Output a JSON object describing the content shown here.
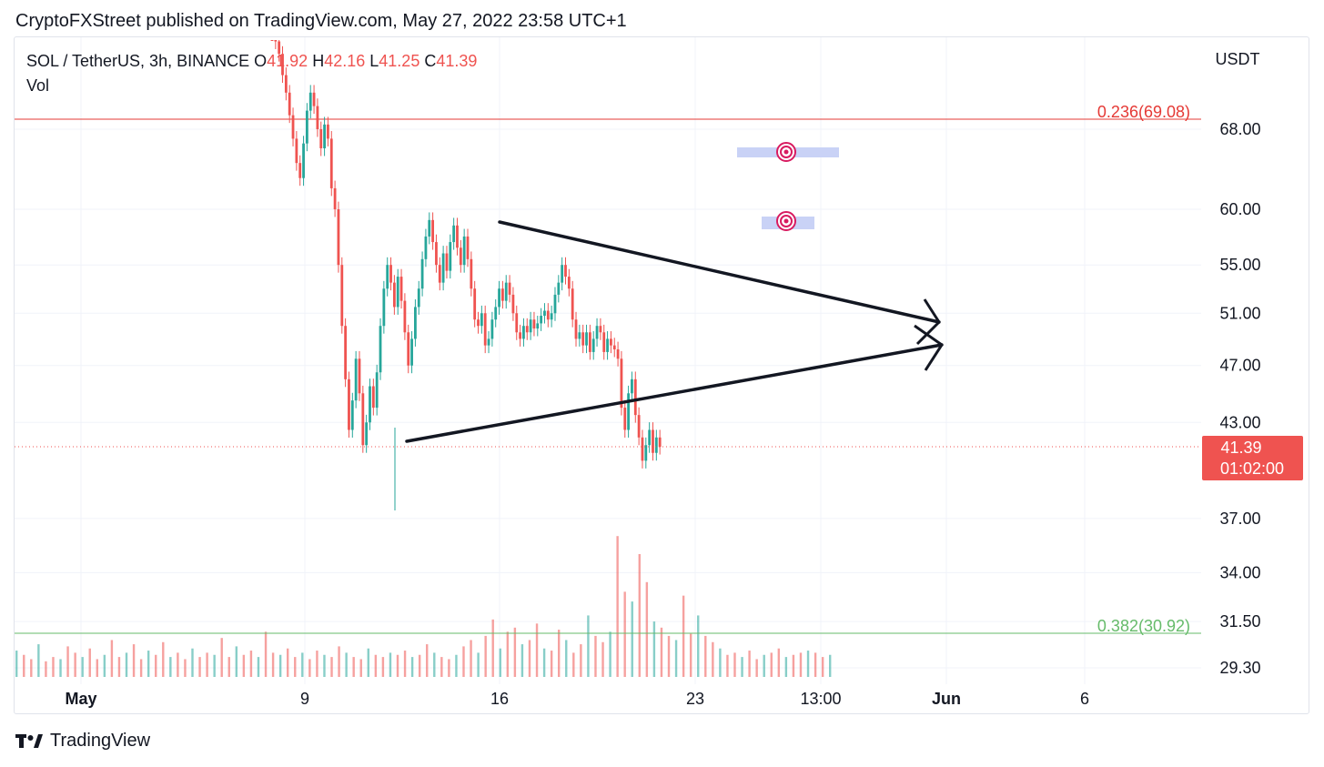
{
  "header": {
    "published": "CryptoFXStreet published on TradingView.com, May 27, 2022 23:58 UTC+1"
  },
  "legend": {
    "symbol": "SOL / TetherUS, 3h, BINANCE",
    "open_label": "O",
    "open": "41.92",
    "high_label": "H",
    "high": "42.16",
    "low_label": "L",
    "low": "41.25",
    "close_label": "C",
    "close": "41.39",
    "volume_label": "Vol"
  },
  "footer": {
    "brand": "TradingView"
  },
  "colors": {
    "up": "#26a69a",
    "down": "#ef5350",
    "fib_0236": "#e53935",
    "fib_0382": "#66bb6a",
    "price_tag": "#ef5350",
    "drawing": "#131722",
    "target_box": "#c9d2f6"
  },
  "chart_data": {
    "type": "candlestick",
    "symbol": "SOL / TetherUS",
    "interval": "3h",
    "exchange": "BINANCE",
    "currency": "USDT",
    "scale": "log",
    "ylim": [
      28.5,
      79
    ],
    "x_ticks": [
      "May",
      "9",
      "16",
      "23",
      "13:00",
      "Jun",
      "6"
    ],
    "y_ticks": [
      "68.00",
      "60.00",
      "55.00",
      "51.00",
      "47.00",
      "43.00",
      "37.00",
      "34.00",
      "31.50",
      "29.30"
    ],
    "last_price": "41.39",
    "countdown": "01:02:00",
    "fib_levels": [
      {
        "label": "0.236(69.08)",
        "level": 0.236,
        "price": 69.08
      },
      {
        "label": "0.382(30.92)",
        "level": 0.382,
        "price": 30.92
      }
    ],
    "close_series": {
      "start": "2022-05-08",
      "bar_hours": 3,
      "close": [
        79.0,
        78.0,
        76.5,
        74.0,
        72.0,
        69.5,
        67.0,
        64.5,
        63.0,
        66.5,
        70.0,
        72.0,
        70.5,
        68.0,
        66.0,
        68.5,
        67.0,
        62.0,
        60.0,
        55.0,
        50.0,
        46.0,
        42.5,
        44.5,
        47.5,
        45.0,
        41.5,
        43.0,
        45.5,
        44.0,
        46.5,
        50.0,
        53.0,
        55.0,
        53.5,
        51.5,
        54.0,
        52.0,
        49.5,
        47.0,
        49.0,
        51.5,
        53.0,
        55.5,
        57.5,
        59.0,
        57.0,
        55.0,
        53.5,
        56.0,
        54.5,
        57.0,
        58.5,
        56.5,
        55.0,
        57.5,
        55.5,
        53.0,
        50.5,
        50.0,
        51.0,
        48.5,
        49.0,
        50.5,
        51.5,
        53.0,
        52.0,
        53.5,
        52.5,
        51.0,
        49.5,
        49.0,
        50.0,
        49.5,
        50.5,
        49.8,
        50.2,
        50.8,
        51.2,
        50.5,
        51.0,
        52.5,
        53.5,
        55.0,
        54.0,
        53.0,
        50.5,
        49.0,
        49.5,
        48.5,
        49.5,
        48.0,
        49.0,
        50.0,
        49.5,
        48.0,
        49.0,
        48.5,
        48.2,
        47.5,
        44.0,
        42.5,
        45.0,
        46.0,
        43.5,
        42.0,
        40.5,
        41.5,
        42.5,
        41.0,
        42.0,
        41.39
      ]
    },
    "volume": [
      30.1,
      29.9,
      29.7,
      30.4,
      29.6,
      29.8,
      29.7,
      30.3,
      30.0,
      29.8,
      30.2,
      29.7,
      29.9,
      30.6,
      29.8,
      30.0,
      30.4,
      29.7,
      30.1,
      29.9,
      30.5,
      29.8,
      30.0,
      29.7,
      30.2,
      29.8,
      30.0,
      29.9,
      30.7,
      29.8,
      30.3,
      29.9,
      30.1,
      29.8,
      31.0,
      30.0,
      29.9,
      30.2,
      29.8,
      30.0,
      29.7,
      30.1,
      29.9,
      29.8,
      30.3,
      30.0,
      29.8,
      29.7,
      30.2,
      29.9,
      29.8,
      30.0,
      29.9,
      30.1,
      29.8,
      29.9,
      30.4,
      30.0,
      29.8,
      29.7,
      29.9,
      30.3,
      30.6,
      30.0,
      30.8,
      31.6,
      30.2,
      31.0,
      31.2,
      30.4,
      30.6,
      31.4,
      30.2,
      30.1,
      31.1,
      30.6,
      30.0,
      30.4,
      31.8,
      30.8,
      30.5,
      31.0,
      36.0,
      33.0,
      32.5,
      35.0,
      33.5,
      31.5,
      31.2,
      30.8,
      30.6,
      32.8,
      30.9,
      31.8,
      30.8,
      30.5,
      30.2,
      29.9,
      30.0,
      29.8,
      30.1,
      29.7,
      29.9,
      30.0,
      30.2,
      29.8,
      29.9,
      30.0,
      30.1,
      30.0,
      29.8,
      29.9
    ]
  }
}
